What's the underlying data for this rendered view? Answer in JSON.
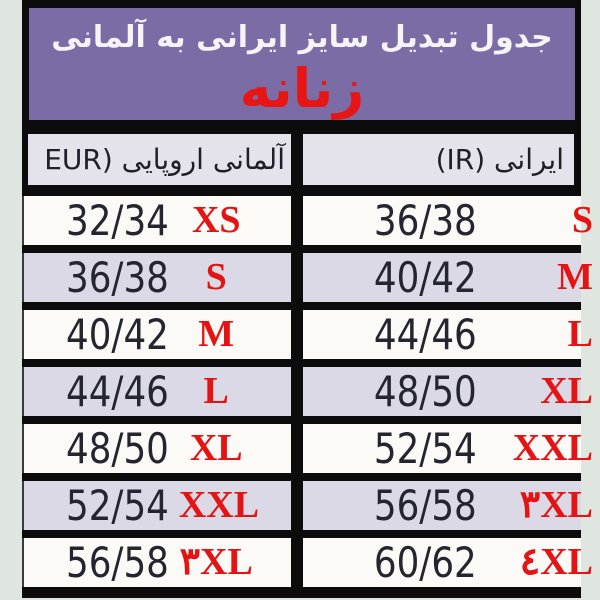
{
  "page": {
    "background": "#dfe6e0"
  },
  "title_box": {
    "title": "جدول تبدیل سایز ایرانی به آلمانی",
    "subtitle": "زنانه",
    "background": "#7b6ca5",
    "title_color": "#f7f4f8",
    "subtitle_color": "#e81515"
  },
  "table": {
    "header": {
      "eur": "آلمانی اروپایی (EUR",
      "ir": "ایرانی (IR)"
    },
    "rows": [
      {
        "eur_size": "32/34",
        "eur_label": "XS",
        "ir_size": "36/38",
        "ir_label": "S"
      },
      {
        "eur_size": "36/38",
        "eur_label": "S",
        "ir_size": "40/42",
        "ir_label": "M"
      },
      {
        "eur_size": "40/42",
        "eur_label": "M",
        "ir_size": "44/46",
        "ir_label": "L"
      },
      {
        "eur_size": "44/46",
        "eur_label": "L",
        "ir_size": "48/50",
        "ir_label": "XL"
      },
      {
        "eur_size": "48/50",
        "eur_label": "XL",
        "ir_size": "52/54",
        "ir_label": "XXL"
      },
      {
        "eur_size": "52/54",
        "eur_label": "XXL",
        "ir_size": "56/58",
        "ir_label": "۳XL"
      },
      {
        "eur_size": "56/58",
        "eur_label": "۳XL",
        "ir_size": "60/62",
        "ir_label": "٤XL"
      }
    ],
    "colors": {
      "border": "#0c0c0c",
      "header_bg": "#e4e2ea",
      "row_white": "#fbfaf7",
      "row_alt": "#dcd9e6",
      "number_text": "#25252f",
      "size_red": "#e41414"
    }
  }
}
